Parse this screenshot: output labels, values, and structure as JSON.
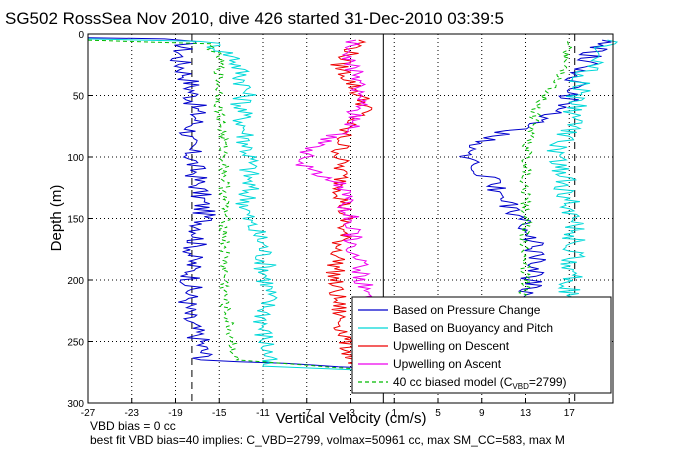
{
  "chart_data": {
    "type": "line",
    "title": "SG502 RossSea Nov 2010, dive 426 started 31-Dec-2010 03:39:5",
    "xlabel": "Vertical Velocity (cm/s)",
    "ylabel": "Depth (m)",
    "xlim": [
      -27,
      21
    ],
    "ylim": [
      0,
      300
    ],
    "y_reversed": true,
    "grid": true,
    "legend_position": "bottom-right",
    "x_ticks": [
      "-27",
      "-23",
      "-19",
      "-15",
      "-11",
      "-7",
      "-3",
      "1",
      "5",
      "9",
      "13",
      "17"
    ],
    "y_ticks": [
      "0",
      "50",
      "100",
      "150",
      "200",
      "250",
      "300"
    ],
    "x_tick_values": [
      -27,
      -23,
      -19,
      -15,
      -11,
      -7,
      -3,
      1,
      5,
      9,
      13,
      17
    ],
    "y_tick_values": [
      0,
      50,
      100,
      150,
      200,
      250,
      300
    ],
    "reference_lines": {
      "zero_x": 0,
      "dashed_x": [
        -17.5,
        17.5
      ]
    },
    "series": [
      {
        "name": "Based on Pressure Change",
        "color": "#0000cc",
        "descent": [
          {
            "x": -27,
            "y": 3
          },
          {
            "x": -20,
            "y": 4
          },
          {
            "x": -18,
            "y": 6
          },
          {
            "x": -18.7,
            "y": 20
          },
          {
            "x": -17.6,
            "y": 40
          },
          {
            "x": -17.3,
            "y": 55
          },
          {
            "x": -17,
            "y": 70
          },
          {
            "x": -18,
            "y": 85
          },
          {
            "x": -17.5,
            "y": 100
          },
          {
            "x": -17,
            "y": 120
          },
          {
            "x": -16.3,
            "y": 150
          },
          {
            "x": -17.5,
            "y": 180
          },
          {
            "x": -17.5,
            "y": 200
          },
          {
            "x": -18,
            "y": 230
          },
          {
            "x": -16.7,
            "y": 250
          },
          {
            "x": -16.3,
            "y": 265
          },
          {
            "x": 0,
            "y": 272
          },
          {
            "x": 1,
            "y": 275
          }
        ],
        "ascent": [
          {
            "x": 1,
            "y": 275
          },
          {
            "x": 14,
            "y": 255
          },
          {
            "x": 13.5,
            "y": 230
          },
          {
            "x": 13.5,
            "y": 200
          },
          {
            "x": 14,
            "y": 170
          },
          {
            "x": 11.5,
            "y": 140
          },
          {
            "x": 9.5,
            "y": 115
          },
          {
            "x": 7,
            "y": 95
          },
          {
            "x": 11,
            "y": 80
          },
          {
            "x": 15,
            "y": 70
          },
          {
            "x": 17,
            "y": 55
          },
          {
            "x": 18,
            "y": 30
          },
          {
            "x": 20,
            "y": 5
          }
        ]
      },
      {
        "name": "Based on Buoyancy and Pitch",
        "color": "#00d8d8",
        "descent": [
          {
            "x": -27,
            "y": 4
          },
          {
            "x": -16,
            "y": 6
          },
          {
            "x": -13.5,
            "y": 20
          },
          {
            "x": -12.5,
            "y": 45
          },
          {
            "x": -13,
            "y": 60
          },
          {
            "x": -12.2,
            "y": 100
          },
          {
            "x": -12.5,
            "y": 150
          },
          {
            "x": -11,
            "y": 170
          },
          {
            "x": -10.5,
            "y": 210
          },
          {
            "x": -11,
            "y": 240
          },
          {
            "x": -10.5,
            "y": 260
          },
          {
            "x": -11,
            "y": 270
          },
          {
            "x": 0,
            "y": 274
          },
          {
            "x": 1,
            "y": 276
          }
        ],
        "ascent": [
          {
            "x": 1,
            "y": 276
          },
          {
            "x": 17,
            "y": 255
          },
          {
            "x": 17,
            "y": 220
          },
          {
            "x": 17.5,
            "y": 160
          },
          {
            "x": 16.5,
            "y": 120
          },
          {
            "x": 16,
            "y": 95
          },
          {
            "x": 17,
            "y": 80
          },
          {
            "x": 17.5,
            "y": 60
          },
          {
            "x": 18,
            "y": 40
          },
          {
            "x": 19.5,
            "y": 20
          },
          {
            "x": 20.5,
            "y": 5
          }
        ]
      },
      {
        "name": "Upwelling on Descent",
        "color": "#ee0000",
        "values": [
          {
            "x": -2,
            "y": 5
          },
          {
            "x": -4,
            "y": 25
          },
          {
            "x": -2.5,
            "y": 45
          },
          {
            "x": -1.5,
            "y": 60
          },
          {
            "x": -3.5,
            "y": 75
          },
          {
            "x": -4,
            "y": 100
          },
          {
            "x": -3.5,
            "y": 150
          },
          {
            "x": -4.5,
            "y": 200
          },
          {
            "x": -4,
            "y": 230
          },
          {
            "x": -3,
            "y": 260
          },
          {
            "x": -2,
            "y": 275
          }
        ]
      },
      {
        "name": "Upwelling on Ascent",
        "color": "#ee00ee",
        "values": [
          {
            "x": -2,
            "y": 275
          },
          {
            "x": 0,
            "y": 240
          },
          {
            "x": -1.5,
            "y": 210
          },
          {
            "x": -2.5,
            "y": 180
          },
          {
            "x": -3,
            "y": 150
          },
          {
            "x": -4,
            "y": 120
          },
          {
            "x": -8,
            "y": 105
          },
          {
            "x": -6,
            "y": 90
          },
          {
            "x": -3,
            "y": 75
          },
          {
            "x": -2,
            "y": 50
          },
          {
            "x": -3,
            "y": 20
          },
          {
            "x": -2.5,
            "y": 5
          }
        ]
      },
      {
        "name": "40 cc biased model (C_VBD=2799)",
        "color": "#00bb00",
        "dashed": true,
        "descent": [
          {
            "x": -27,
            "y": 5
          },
          {
            "x": -16,
            "y": 8
          },
          {
            "x": -15,
            "y": 20
          },
          {
            "x": -15,
            "y": 60
          },
          {
            "x": -14.5,
            "y": 100
          },
          {
            "x": -14.5,
            "y": 160
          },
          {
            "x": -14.5,
            "y": 220
          },
          {
            "x": -13.5,
            "y": 265
          },
          {
            "x": 0,
            "y": 274
          },
          {
            "x": 1,
            "y": 276
          }
        ],
        "ascent": [
          {
            "x": 1,
            "y": 276
          },
          {
            "x": 12.5,
            "y": 255
          },
          {
            "x": 13,
            "y": 200
          },
          {
            "x": 13,
            "y": 150
          },
          {
            "x": 13,
            "y": 100
          },
          {
            "x": 14,
            "y": 60
          },
          {
            "x": 16.5,
            "y": 30
          },
          {
            "x": 17,
            "y": 5
          }
        ]
      }
    ],
    "legend": {
      "entries": [
        "Based on Pressure Change",
        "Based on Buoyancy and Pitch",
        "Upwelling on Descent",
        "Upwelling on Ascent",
        "40 cc biased model (C"
      ],
      "last_entry_sub": "VBD",
      "last_entry_suffix": "=2799)"
    },
    "footer": {
      "line1": "VBD bias = 0 cc",
      "line2": "best fit VBD bias=40 implies: C_VBD=2799, volmax=50961 cc, max SM_CC=583, max M"
    }
  }
}
